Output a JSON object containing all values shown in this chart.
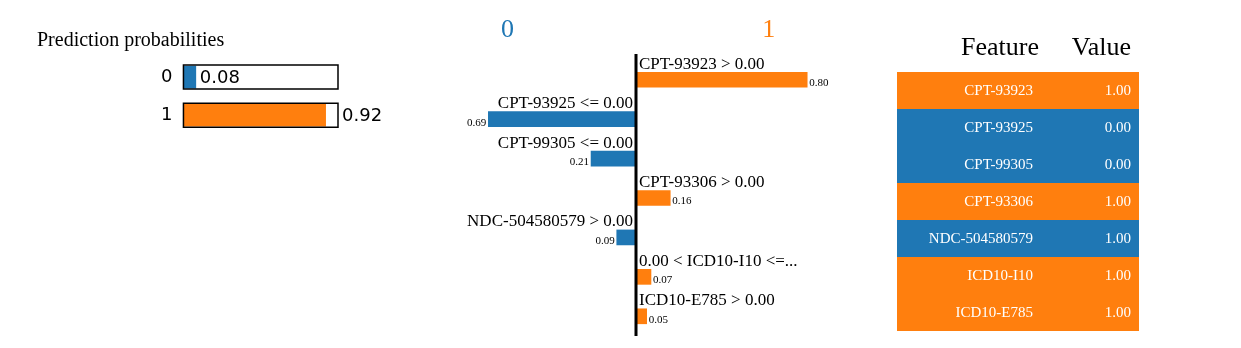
{
  "chart_data": [
    {
      "type": "bar",
      "orientation": "horizontal",
      "title": "Prediction probabilities",
      "categories": [
        "0",
        "1"
      ],
      "values": [
        0.08,
        0.92
      ],
      "colors": [
        "#1f77b4",
        "#ff7f0e"
      ],
      "xlim": [
        0,
        1
      ],
      "data_labels": true,
      "tick_labels": "y"
    },
    {
      "type": "bar",
      "orientation": "horizontal",
      "legend": "top",
      "tick_labels": "y",
      "categories": [
        "CPT-93923 > 0.00",
        "CPT-93925 <= 0.00",
        "CPT-99305 <= 0.00",
        "CPT-93306 > 0.00",
        "NDC-504580579 > 0.00",
        "0.00 < ICD10-I10 <=...",
        "ICD10-E785 > 0.00"
      ],
      "series": [
        {
          "name": "0",
          "color": "#1f77b4",
          "values": [
            null,
            -0.69,
            -0.21,
            null,
            -0.09,
            null,
            null
          ]
        },
        {
          "name": "1",
          "color": "#ff7f0e",
          "values": [
            0.8,
            null,
            null,
            0.16,
            null,
            0.07,
            0.05
          ],
          "value_labels": [
            "0.80",
            null,
            null,
            "0.16",
            null,
            "0.07",
            "0.05"
          ]
        }
      ],
      "annotations": [
        {
          "text": "0.69",
          "x": -0.69,
          "y": "CPT-93925 <= 0.00"
        },
        {
          "text": "0.21",
          "x": -0.21,
          "y": "CPT-99305 <= 0.00"
        },
        {
          "text": "0.09",
          "x": -0.09,
          "y": "NDC-504580579 > 0.00"
        }
      ]
    },
    {
      "type": "other",
      "annotations": [
        "Feature",
        "Value"
      ],
      "categories": [
        "CPT-93923",
        "CPT-93925",
        "CPT-99305",
        "CPT-93306",
        "NDC-504580579",
        "ICD10-I10",
        "ICD10-E785"
      ],
      "value_labels": [
        "1.00",
        "0.00",
        "0.00",
        "1.00",
        "1.00",
        "1.00",
        "1.00"
      ],
      "colors": [
        "#ff7f0e",
        "#1f77b4",
        "#1f77b4",
        "#ff7f0e",
        "#1f77b4",
        "#ff7f0e",
        "#ff7f0e"
      ]
    }
  ]
}
